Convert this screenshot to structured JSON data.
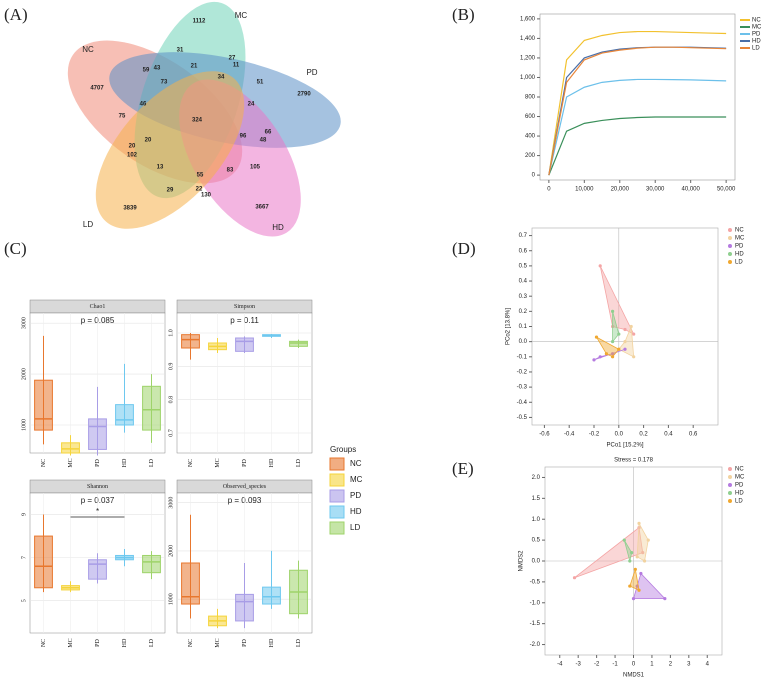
{
  "chart_data": [
    {
      "type": "venn",
      "label": "(A)",
      "sets": [
        "NC",
        "MC",
        "PD",
        "HD",
        "LD"
      ],
      "colors": [
        "#f08a78",
        "#6fd3b8",
        "#5b8fc7",
        "#e978c8",
        "#f5b04a"
      ],
      "regions": [
        4707,
        1112,
        2790,
        3667,
        3839,
        59,
        43,
        31,
        27,
        11,
        51,
        73,
        21,
        34,
        46,
        75,
        324,
        24,
        96,
        66,
        48,
        20,
        102,
        20,
        13,
        55,
        83,
        105,
        29,
        22,
        130
      ]
    },
    {
      "type": "line",
      "label": "(B)",
      "x": [
        0,
        5000,
        10000,
        15000,
        20000,
        25000,
        30000,
        35000,
        40000,
        45000,
        50000
      ],
      "series": [
        {
          "name": "NC",
          "color": "#f2c12e",
          "values": [
            0,
            1180,
            1380,
            1430,
            1460,
            1470,
            1470,
            1465,
            1460,
            1455,
            1450
          ]
        },
        {
          "name": "MC",
          "color": "#3a8f5a",
          "values": [
            0,
            450,
            530,
            560,
            580,
            590,
            595,
            595,
            595,
            595,
            595
          ]
        },
        {
          "name": "PD",
          "color": "#6cc0ea",
          "values": [
            0,
            800,
            900,
            950,
            970,
            980,
            980,
            978,
            975,
            970,
            965
          ]
        },
        {
          "name": "HD",
          "color": "#4a6fa8",
          "values": [
            0,
            1000,
            1200,
            1260,
            1290,
            1305,
            1310,
            1310,
            1310,
            1305,
            1300
          ]
        },
        {
          "name": "LD",
          "color": "#e8863a",
          "values": [
            0,
            950,
            1180,
            1250,
            1280,
            1300,
            1310,
            1310,
            1305,
            1300,
            1295
          ]
        }
      ],
      "xlim": [
        -2500,
        52500
      ],
      "xticks": [
        0,
        {
          "value": 10000,
          "label": "10,000"
        },
        {
          "value": 20000,
          "label": "20,000"
        },
        {
          "value": 30000,
          "label": "30,000"
        },
        {
          "value": 40000,
          "label": "40,000"
        },
        {
          "value": 50000,
          "label": "50,000"
        }
      ],
      "ylim": [
        -50,
        1650
      ],
      "yticks": [
        0,
        200,
        400,
        600,
        800,
        {
          "value": 1000,
          "label": "1,000"
        },
        {
          "value": 1200,
          "label": "1,200"
        },
        {
          "value": 1400,
          "label": "1,400"
        },
        {
          "value": 1600,
          "label": "1,600"
        }
      ]
    },
    {
      "type": "box",
      "label": "(C)",
      "legend_title": "Groups",
      "categories": [
        "NC",
        "MC",
        "PD",
        "HD",
        "LD"
      ],
      "colors": [
        "#e8772e",
        "#f5d43b",
        "#a89de6",
        "#6ec8ef",
        "#9ed36a"
      ],
      "facets": [
        {
          "title": "Chao1",
          "annotation": "p = 0.085",
          "ylim": [
            450,
            3200
          ],
          "yticks": [
            1000,
            2000,
            3000
          ],
          "low": [
            620,
            400,
            400,
            850,
            650
          ],
          "q1": [
            900,
            450,
            520,
            1000,
            900
          ],
          "median": [
            1120,
            530,
            970,
            1100,
            1300
          ],
          "q3": [
            1880,
            650,
            1120,
            1400,
            1760
          ],
          "high": [
            2750,
            800,
            1750,
            2200,
            2000
          ]
        },
        {
          "title": "Simpson",
          "annotation": "p = 0.11",
          "ylim": [
            0.64,
            1.06
          ],
          "yticks": [
            0.7,
            0.8,
            0.9,
            {
              "value": 1,
              "label": "1.0"
            }
          ],
          "low": [
            0.92,
            0.94,
            0.94,
            0.985,
            0.955
          ],
          "q1": [
            0.955,
            0.95,
            0.945,
            0.99,
            0.96
          ],
          "median": [
            0.98,
            0.96,
            0.975,
            0.993,
            0.97
          ],
          "q3": [
            0.995,
            0.97,
            0.985,
            0.995,
            0.975
          ],
          "high": [
            1,
            0.985,
            0.99,
            0.997,
            0.98
          ]
        },
        {
          "title": "Shannon",
          "annotation": "p = 0.037",
          "ylim": [
            3.5,
            10
          ],
          "yticks": [
            5,
            7,
            9
          ],
          "low": [
            5.4,
            5.4,
            5.8,
            6.6,
            6
          ],
          "q1": [
            5.6,
            5.5,
            6,
            6.9,
            6.3
          ],
          "median": [
            6.6,
            5.6,
            6.7,
            7,
            6.8
          ],
          "q3": [
            8,
            5.7,
            6.9,
            7.1,
            7.1
          ],
          "high": [
            9,
            5.9,
            7.2,
            7.4,
            7.3
          ],
          "significance": {
            "groups": [
              "MC",
              "HD"
            ],
            "label": "*"
          }
        },
        {
          "title": "Observed_species",
          "annotation": "p = 0.093",
          "ylim": [
            300,
            3200
          ],
          "yticks": [
            1000,
            2000,
            3000
          ],
          "low": [
            600,
            400,
            400,
            800,
            600
          ],
          "q1": [
            900,
            450,
            550,
            900,
            700
          ],
          "median": [
            1050,
            550,
            950,
            1050,
            1150
          ],
          "q3": [
            1750,
            650,
            1100,
            1250,
            1600
          ],
          "high": [
            2750,
            800,
            1750,
            2000,
            1800
          ]
        }
      ]
    },
    {
      "type": "scatter",
      "label": "(D)",
      "xlabel": "PCo1 [15.2%]",
      "ylabel": "PCo2 [13.8%]",
      "xlim": [
        -0.7,
        0.8
      ],
      "xticks": [
        -0.6,
        -0.4,
        -0.2,
        {
          "value": 0,
          "label": "0.0"
        },
        0.2,
        0.4,
        0.6
      ],
      "ylim": [
        -0.55,
        0.75
      ],
      "yticks": [
        -0.5,
        -0.4,
        -0.3,
        -0.2,
        -0.1,
        {
          "value": 0,
          "label": "0.0"
        },
        0.1,
        0.2,
        0.3,
        0.4,
        0.5,
        0.6,
        0.7
      ],
      "series": [
        {
          "name": "NC",
          "color": "#f4a5a5",
          "x": [
            -0.15,
            0.12,
            0.05,
            -0.05
          ],
          "y": [
            0.5,
            0.05,
            0.08,
            0.1
          ]
        },
        {
          "name": "MC",
          "color": "#f2d3a0",
          "x": [
            0.1,
            0.12,
            0,
            0.05
          ],
          "y": [
            0.1,
            -0.1,
            -0.05,
            0
          ]
        },
        {
          "name": "PD",
          "color": "#b57be0",
          "x": [
            -0.2,
            0.05,
            -0.05,
            -0.15
          ],
          "y": [
            -0.12,
            -0.05,
            -0.08,
            -0.1
          ]
        },
        {
          "name": "HD",
          "color": "#8fcf8f",
          "x": [
            -0.05,
            0,
            -0.05
          ],
          "y": [
            0.2,
            0.05,
            0
          ]
        },
        {
          "name": "LD",
          "color": "#f0a830",
          "x": [
            -0.18,
            0,
            -0.05,
            -0.1
          ],
          "y": [
            0.03,
            -0.05,
            -0.1,
            -0.08
          ]
        }
      ]
    },
    {
      "type": "scatter",
      "label": "(E)",
      "subtitle": "Stress = 0.178",
      "xlabel": "NMDS1",
      "ylabel": "NMDS2",
      "xlim": [
        -4.8,
        4.8
      ],
      "xticks": [
        -4,
        -3,
        -2,
        -1,
        0,
        1,
        2,
        3,
        4
      ],
      "ylim": [
        -2.25,
        2.25
      ],
      "yticks": [
        {
          "value": -2,
          "label": "-2.0"
        },
        -1.5,
        {
          "value": -1,
          "label": "-1.0"
        },
        -0.5,
        {
          "value": 0,
          "label": "0.0"
        },
        0.5,
        {
          "value": 1,
          "label": "1.0"
        },
        1.5,
        {
          "value": 2,
          "label": "2.0"
        }
      ],
      "series": [
        {
          "name": "NC",
          "color": "#f4a5a5",
          "x": [
            -3.2,
            0.3,
            0.5
          ],
          "y": [
            -0.4,
            0.8,
            0.2
          ]
        },
        {
          "name": "MC",
          "color": "#f2d3a0",
          "x": [
            0.3,
            0.8,
            0.6,
            0.2
          ],
          "y": [
            0.9,
            0.5,
            0,
            0.1
          ]
        },
        {
          "name": "PD",
          "color": "#b57be0",
          "x": [
            0.4,
            1.7,
            0,
            0.2
          ],
          "y": [
            -0.3,
            -0.9,
            -0.9,
            -0.6
          ]
        },
        {
          "name": "HD",
          "color": "#8fcf8f",
          "x": [
            -0.5,
            -0.1,
            -0.2
          ],
          "y": [
            0.5,
            0.2,
            0
          ]
        },
        {
          "name": "LD",
          "color": "#f0a830",
          "x": [
            -0.2,
            0.1,
            0.3
          ],
          "y": [
            -0.6,
            -0.2,
            -0.7
          ]
        }
      ]
    }
  ]
}
